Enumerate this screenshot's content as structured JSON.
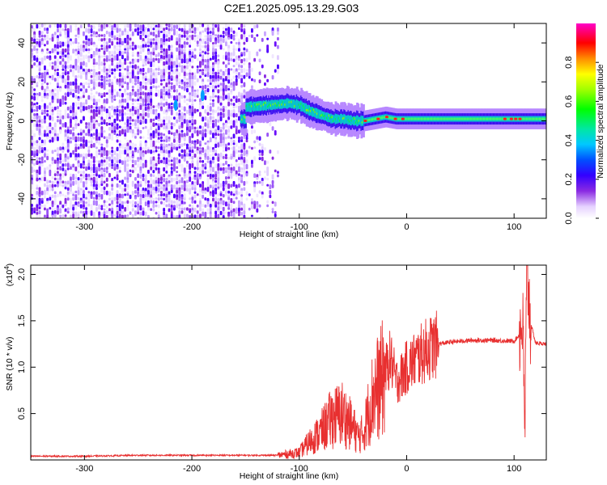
{
  "title": "C2E1.2025.095.13.29.G03",
  "chart_data": [
    {
      "type": "heatmap",
      "xlabel": "Height of straight line (km)",
      "ylabel": "Frequency (Hz)",
      "xlim": [
        -350,
        130
      ],
      "ylim": [
        -50,
        50
      ],
      "xticks": [
        "-300",
        "-200",
        "-100",
        "0",
        "100"
      ],
      "xtick_values": [
        -300,
        -200,
        -100,
        0,
        100
      ],
      "yticks": [
        "-40",
        "-20",
        "0",
        "20",
        "40"
      ],
      "ytick_values": [
        -40,
        -20,
        0,
        20,
        40
      ],
      "colorbar": {
        "label": "Normalized spectral amplitude",
        "range": [
          0,
          1
        ],
        "ticks": [
          "0.0",
          "0.2",
          "0.4",
          "0.6",
          "0.8"
        ],
        "tick_values": [
          0.0,
          0.2,
          0.4,
          0.6,
          0.8
        ]
      },
      "signal_ridge": {
        "x": [
          -150,
          -130,
          -110,
          -100,
          -90,
          -80,
          -70,
          -60,
          -50,
          -40,
          -30,
          -20,
          -10,
          0,
          20,
          40,
          60,
          80,
          100,
          110,
          130
        ],
        "y": [
          7,
          8,
          9,
          8,
          5,
          3,
          1,
          1,
          0,
          0,
          1,
          2,
          1,
          1,
          1,
          1,
          1,
          1,
          1,
          1,
          1
        ]
      }
    },
    {
      "type": "line",
      "xlabel": "Height of straight line (km)",
      "ylabel": "SNR (10 * v/v)",
      "multiplier": "(x10",
      "multiplier_exp": "4",
      "multiplier_close": ")",
      "xlim": [
        -350,
        130
      ],
      "ylim": [
        0,
        2.1
      ],
      "xticks": [
        "-300",
        "-200",
        "-100",
        "0",
        "100"
      ],
      "xtick_values": [
        -300,
        -200,
        -100,
        0,
        100
      ],
      "yticks": [
        "0.5",
        "1.0",
        "1.5",
        "2.0"
      ],
      "ytick_values": [
        0.5,
        1.0,
        1.5,
        2.0
      ],
      "series": [
        {
          "color": "#e83030",
          "x": [
            -350,
            -300,
            -250,
            -200,
            -150,
            -120,
            -100,
            -90,
            -80,
            -70,
            -60,
            -50,
            -45,
            -40,
            -35,
            -30,
            -25,
            -20,
            -15,
            -10,
            -5,
            0,
            10,
            20,
            30,
            40,
            50,
            60,
            80,
            100,
            105,
            108,
            110,
            112,
            115,
            120,
            130
          ],
          "y": [
            0.04,
            0.04,
            0.05,
            0.05,
            0.05,
            0.05,
            0.08,
            0.2,
            0.3,
            0.45,
            0.5,
            0.35,
            0.25,
            0.3,
            0.55,
            0.75,
            0.8,
            0.95,
            1.1,
            0.85,
            0.9,
            1.0,
            1.1,
            1.2,
            1.25,
            1.27,
            1.28,
            1.29,
            1.29,
            1.28,
            1.35,
            1.5,
            0.3,
            2.1,
            1.5,
            1.26,
            1.25
          ]
        }
      ]
    }
  ]
}
